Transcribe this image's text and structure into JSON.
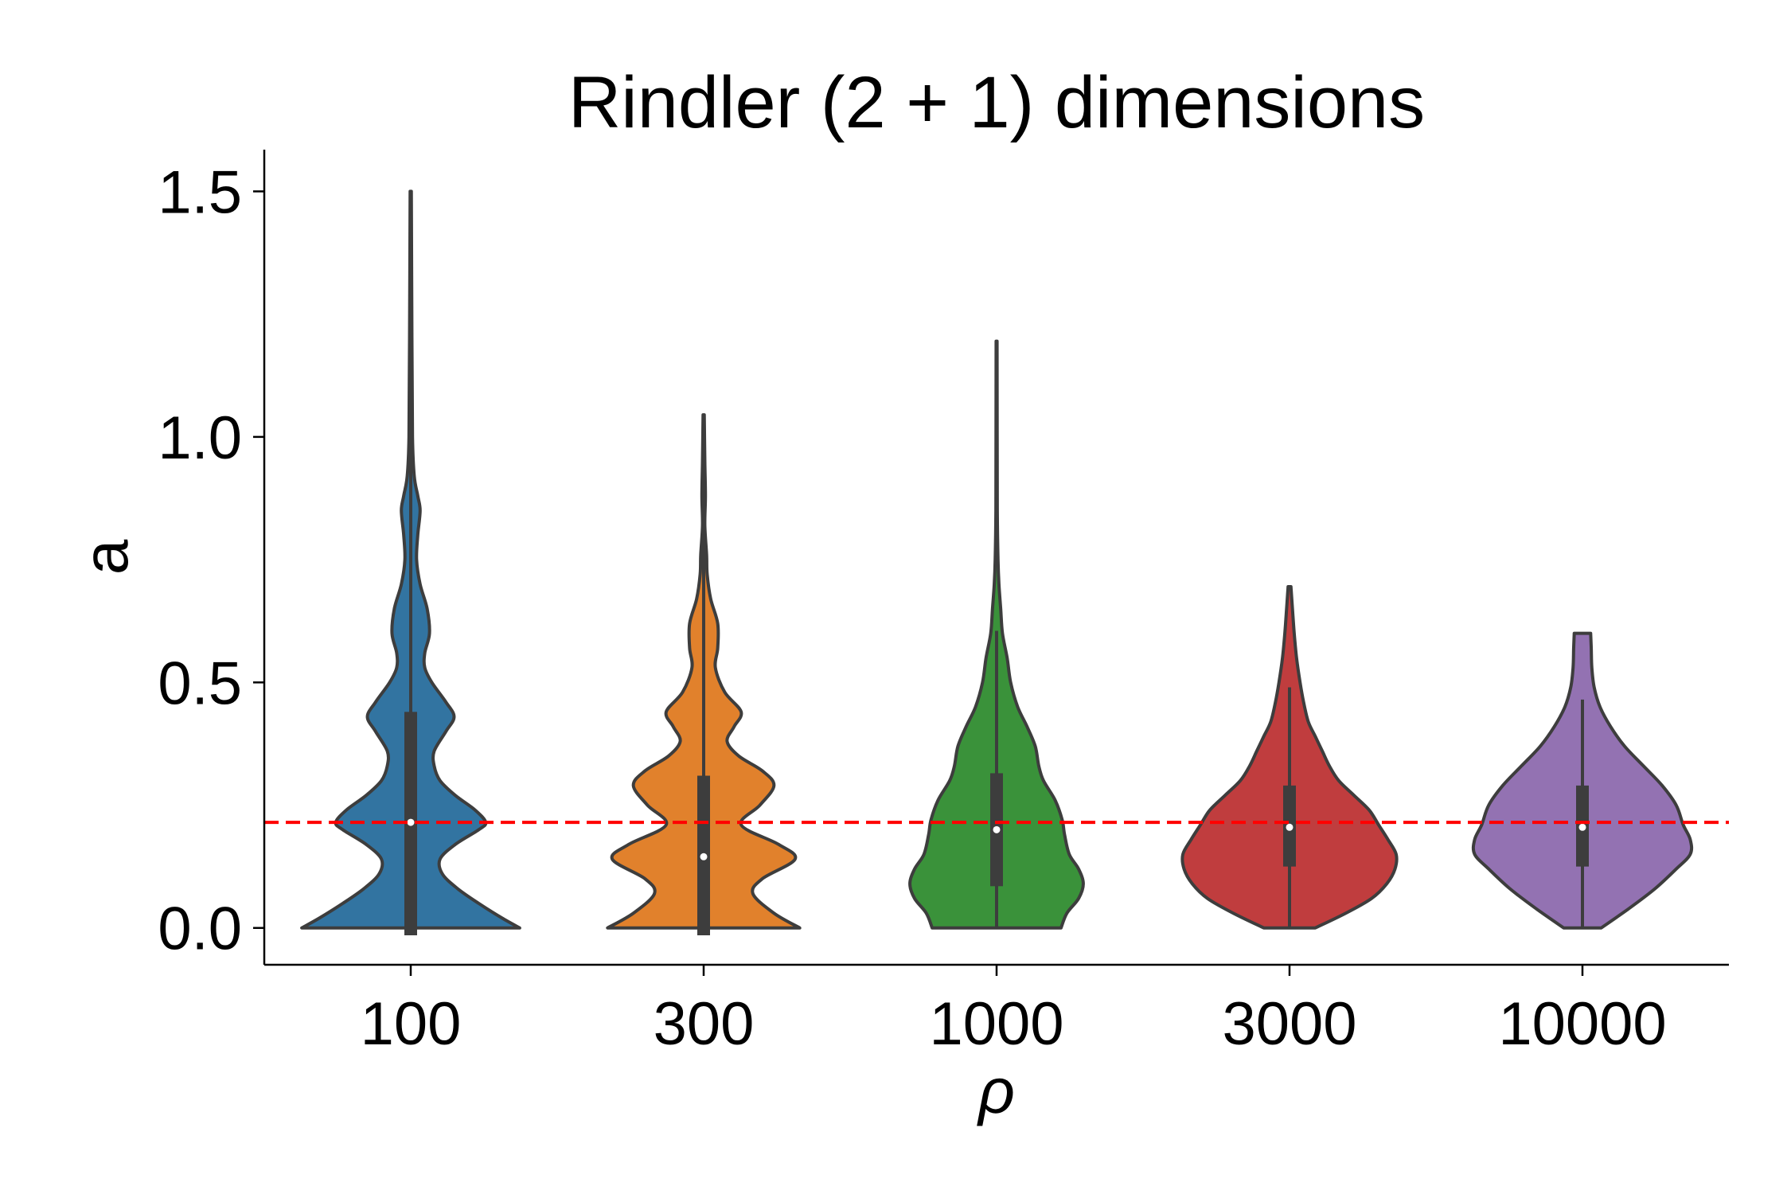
{
  "chart_data": {
    "type": "violin",
    "title": "Rindler (2 + 1) dimensions",
    "xlabel": "ρ",
    "ylabel": "a",
    "categories": [
      "100",
      "300",
      "1000",
      "3000",
      "10000"
    ],
    "yticks": [
      "0.0",
      "0.5",
      "1.0",
      "1.5"
    ],
    "ytick_values": [
      0.0,
      0.5,
      1.0,
      1.5
    ],
    "ylim": [
      -0.075,
      1.585
    ],
    "reference_line": {
      "y": 0.215,
      "color": "#ff0000",
      "style": "dashed"
    },
    "grid": false,
    "series": [
      {
        "category": "100",
        "color": "#3274a1",
        "max": 1.5,
        "median": 0.215,
        "q1": -0.015,
        "q3": 0.44,
        "whisker_low": -0.015,
        "whisker_high": 1.5,
        "density": [
          [
            0.0,
            0.93
          ],
          [
            0.02,
            0.78
          ],
          [
            0.05,
            0.58
          ],
          [
            0.08,
            0.4
          ],
          [
            0.11,
            0.27
          ],
          [
            0.14,
            0.25
          ],
          [
            0.17,
            0.38
          ],
          [
            0.2,
            0.58
          ],
          [
            0.215,
            0.64
          ],
          [
            0.24,
            0.55
          ],
          [
            0.27,
            0.38
          ],
          [
            0.3,
            0.25
          ],
          [
            0.33,
            0.2
          ],
          [
            0.36,
            0.2
          ],
          [
            0.4,
            0.3
          ],
          [
            0.43,
            0.37
          ],
          [
            0.46,
            0.3
          ],
          [
            0.5,
            0.18
          ],
          [
            0.53,
            0.12
          ],
          [
            0.56,
            0.12
          ],
          [
            0.6,
            0.16
          ],
          [
            0.65,
            0.14
          ],
          [
            0.7,
            0.08
          ],
          [
            0.75,
            0.05
          ],
          [
            0.8,
            0.06
          ],
          [
            0.85,
            0.08
          ],
          [
            0.88,
            0.06
          ],
          [
            0.92,
            0.03
          ],
          [
            1.0,
            0.015
          ],
          [
            1.2,
            0.01
          ],
          [
            1.5,
            0.005
          ]
        ]
      },
      {
        "category": "300",
        "color": "#e1812c",
        "max": 1.045,
        "median": 0.145,
        "q1": -0.015,
        "q3": 0.31,
        "whisker_low": -0.015,
        "whisker_high": 1.045,
        "density": [
          [
            0.0,
            0.82
          ],
          [
            0.03,
            0.6
          ],
          [
            0.07,
            0.42
          ],
          [
            0.1,
            0.5
          ],
          [
            0.14,
            0.78
          ],
          [
            0.17,
            0.64
          ],
          [
            0.21,
            0.32
          ],
          [
            0.25,
            0.48
          ],
          [
            0.29,
            0.6
          ],
          [
            0.32,
            0.5
          ],
          [
            0.35,
            0.3
          ],
          [
            0.38,
            0.2
          ],
          [
            0.41,
            0.26
          ],
          [
            0.44,
            0.32
          ],
          [
            0.48,
            0.18
          ],
          [
            0.53,
            0.1
          ],
          [
            0.57,
            0.12
          ],
          [
            0.62,
            0.12
          ],
          [
            0.67,
            0.06
          ],
          [
            0.72,
            0.03
          ],
          [
            0.76,
            0.025
          ],
          [
            0.82,
            0.01
          ],
          [
            0.88,
            0.015
          ],
          [
            0.95,
            0.01
          ],
          [
            1.045,
            0.005
          ]
        ]
      },
      {
        "category": "1000",
        "color": "#3a923a",
        "max": 1.195,
        "median": 0.2,
        "q1": 0.085,
        "q3": 0.315,
        "whisker_low": 0.0,
        "whisker_high": 0.605,
        "density": [
          [
            0.0,
            0.55
          ],
          [
            0.03,
            0.6
          ],
          [
            0.06,
            0.7
          ],
          [
            0.09,
            0.74
          ],
          [
            0.12,
            0.7
          ],
          [
            0.15,
            0.62
          ],
          [
            0.19,
            0.58
          ],
          [
            0.22,
            0.56
          ],
          [
            0.26,
            0.5
          ],
          [
            0.3,
            0.4
          ],
          [
            0.33,
            0.36
          ],
          [
            0.37,
            0.33
          ],
          [
            0.41,
            0.26
          ],
          [
            0.45,
            0.18
          ],
          [
            0.5,
            0.12
          ],
          [
            0.55,
            0.09
          ],
          [
            0.6,
            0.05
          ],
          [
            0.65,
            0.035
          ],
          [
            0.7,
            0.02
          ],
          [
            0.75,
            0.012
          ],
          [
            0.85,
            0.006
          ],
          [
            1.0,
            0.005
          ],
          [
            1.195,
            0.004
          ]
        ]
      },
      {
        "category": "3000",
        "color": "#c03d3e",
        "max": 0.695,
        "median": 0.205,
        "q1": 0.125,
        "q3": 0.29,
        "whisker_low": 0.0,
        "whisker_high": 0.49,
        "density": [
          [
            0.0,
            0.22
          ],
          [
            0.03,
            0.48
          ],
          [
            0.06,
            0.7
          ],
          [
            0.09,
            0.83
          ],
          [
            0.12,
            0.9
          ],
          [
            0.15,
            0.91
          ],
          [
            0.18,
            0.84
          ],
          [
            0.21,
            0.76
          ],
          [
            0.24,
            0.68
          ],
          [
            0.27,
            0.55
          ],
          [
            0.3,
            0.42
          ],
          [
            0.33,
            0.34
          ],
          [
            0.36,
            0.28
          ],
          [
            0.39,
            0.22
          ],
          [
            0.42,
            0.16
          ],
          [
            0.46,
            0.12
          ],
          [
            0.5,
            0.09
          ],
          [
            0.55,
            0.06
          ],
          [
            0.6,
            0.04
          ],
          [
            0.65,
            0.025
          ],
          [
            0.695,
            0.012
          ]
        ]
      },
      {
        "category": "10000",
        "color": "#9372b2",
        "max": 0.6,
        "median": 0.205,
        "q1": 0.125,
        "q3": 0.29,
        "whisker_low": 0.0,
        "whisker_high": 0.465,
        "density": [
          [
            0.0,
            0.16
          ],
          [
            0.04,
            0.4
          ],
          [
            0.08,
            0.62
          ],
          [
            0.12,
            0.8
          ],
          [
            0.15,
            0.92
          ],
          [
            0.18,
            0.92
          ],
          [
            0.21,
            0.86
          ],
          [
            0.25,
            0.8
          ],
          [
            0.29,
            0.68
          ],
          [
            0.33,
            0.52
          ],
          [
            0.37,
            0.36
          ],
          [
            0.41,
            0.24
          ],
          [
            0.45,
            0.15
          ],
          [
            0.49,
            0.1
          ],
          [
            0.53,
            0.08
          ],
          [
            0.57,
            0.075
          ],
          [
            0.6,
            0.07
          ]
        ]
      }
    ]
  }
}
